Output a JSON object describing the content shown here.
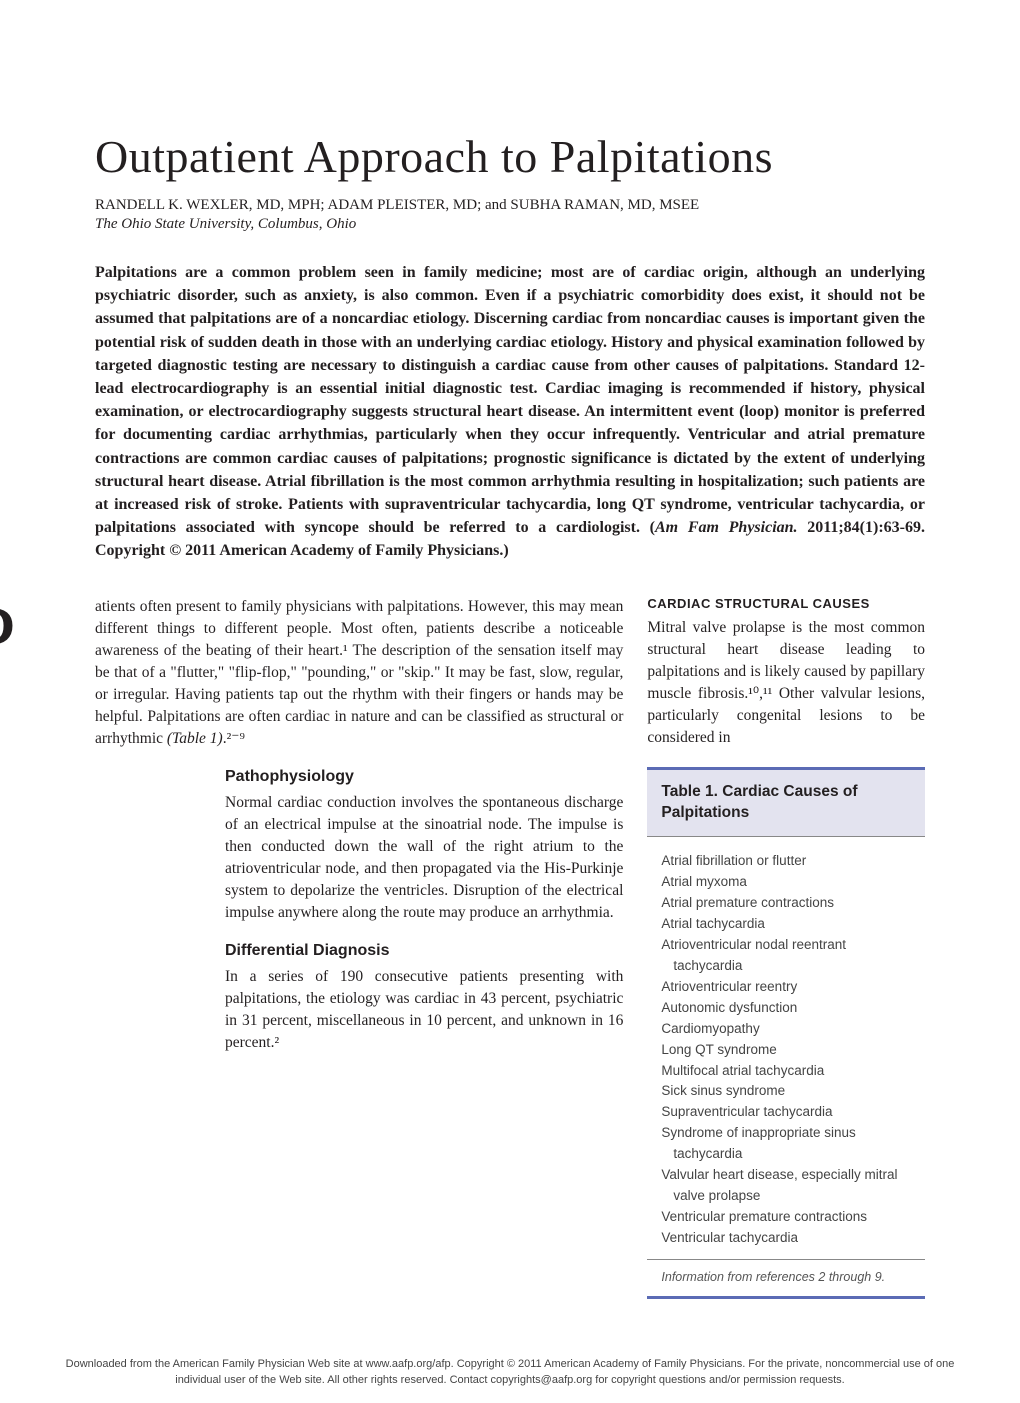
{
  "title": "Outpatient Approach to Palpitations",
  "authors": "RANDELL K. WEXLER, MD, MPH; ADAM PLEISTER, MD; and SUBHA RAMAN, MD, MSEE",
  "affiliation": "The Ohio State University, Columbus, Ohio",
  "abstract_main": "Palpitations are a common problem seen in family medicine; most are of cardiac origin, although an underlying psychiatric disorder, such as anxiety, is also common. Even if a psychiatric comorbidity does exist, it should not be assumed that palpitations are of a noncardiac etiology. Discerning cardiac from noncardiac causes is important given the potential risk of sudden death in those with an underlying cardiac etiology. History and physical examination followed by targeted diagnostic testing are necessary to distinguish a cardiac cause from other causes of palpitations. Standard 12-lead electrocardiography is an essential initial diagnostic test. Cardiac imaging is recommended if history, physical examination, or electrocardiography suggests structural heart disease. An intermittent event (loop) monitor is preferred for documenting cardiac arrhythmias, particularly when they occur infrequently. Ventricular and atrial premature contractions are common cardiac causes of palpitations; prognostic significance is dictated by the extent of underlying structural heart disease. Atrial fibrillation is the most common arrhythmia resulting in hospitalization; such patients are at increased risk of stroke. Patients with supraventricular tachycardia, long QT syndrome, ventricular tachycardia, or palpitations associated with syncope should be referred to a cardiologist. (",
  "abstract_cite": "Am Fam Physician.",
  "abstract_tail": " 2011;84(1):63-69. Copyright © 2011 American Academy of Family Physicians.)",
  "intro_para": "atients often present to family physicians with palpitations. However, this may mean different things to different people. Most often, patients describe a noticeable awareness of the beating of their heart.¹ The description of the sensation itself may be that of a \"flutter,\" \"flip-flop,\" \"pounding,\" or \"skip.\" It may be fast, slow, regular, or irregular. Having patients tap out the rhythm with their fingers or hands may be helpful. Palpitations are often cardiac in nature and can be classified as structural or arrhythmic ",
  "intro_tail_italic": "(Table 1)",
  "intro_tail": ".²⁻⁹",
  "sections": {
    "patho_head": "Pathophysiology",
    "patho_body": "Normal cardiac conduction involves the spontaneous discharge of an electrical impulse at the sinoatrial node. The impulse is then conducted down the wall of the right atrium to the atrioventricular node, and then propagated via the His-Purkinje system to depolarize the ventricles. Disruption of the electrical impulse anywhere along the route may produce an arrhythmia.",
    "diff_head": "Differential Diagnosis",
    "diff_body": "In a series of 190 consecutive patients presenting with palpitations, the etiology was cardiac in 43 percent, psychiatric in 31 percent, miscellaneous in 10 percent, and unknown in 16 percent.²",
    "struct_head": "CARDIAC STRUCTURAL CAUSES",
    "struct_body": "Mitral valve prolapse is the most common structural heart disease leading to palpitations and is likely caused by papillary muscle fibrosis.¹⁰,¹¹ Other valvular lesions, particularly congenital lesions to be considered in"
  },
  "table1": {
    "title": "Table 1. Cardiac Causes of Palpitations",
    "items": [
      "Atrial fibrillation or flutter",
      "Atrial myxoma",
      "Atrial premature contractions",
      "Atrial tachycardia",
      "Atrioventricular nodal reentrant tachycardia",
      "Atrioventricular reentry",
      "Autonomic dysfunction",
      "Cardiomyopathy",
      "Long QT syndrome",
      "Multifocal atrial tachycardia",
      "Sick sinus syndrome",
      "Supraventricular tachycardia",
      "Syndrome of inappropriate sinus tachycardia",
      "Valvular heart disease, especially mitral valve prolapse",
      "Ventricular premature contractions",
      "Ventricular tachycardia"
    ],
    "footnote": "Information from references 2 through 9."
  },
  "footer": "Downloaded from the American Family Physician Web site at www.aafp.org/afp. Copyright © 2011 American Academy of Family Physicians. For the private, noncommercial use of one individual user of the Web site. All other rights reserved. Contact copyrights@aafp.org for copyright questions and/or permission requests.",
  "colors": {
    "rule": "#5b6bb5",
    "table_bg": "#e3e3ef",
    "text": "#231f20"
  },
  "typography": {
    "title_size": 46,
    "body_size": 15.5,
    "abstract_size": 16,
    "section_size": 16,
    "table_title_size": 15.5,
    "table_item_size": 13.5
  }
}
